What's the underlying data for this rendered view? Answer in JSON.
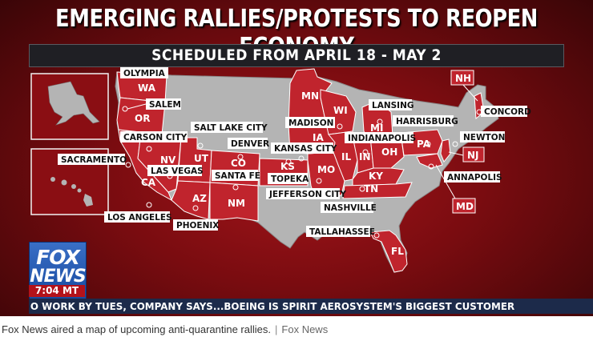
{
  "headline": "EMERGING RALLIES/PROTESTS TO REOPEN ECONOMY",
  "subheadline": "SCHEDULED FROM APRIL 18 - MAY 2",
  "colors": {
    "protest_state": "#c0242d",
    "other_state": "#b4b4b4",
    "background": "#8d1015",
    "label_bg": "#ffffff"
  },
  "states": [
    {
      "abbr": "WA",
      "protest": true
    },
    {
      "abbr": "OR",
      "protest": true
    },
    {
      "abbr": "CA",
      "protest": true
    },
    {
      "abbr": "NV",
      "protest": true
    },
    {
      "abbr": "UT",
      "protest": true
    },
    {
      "abbr": "AZ",
      "protest": true
    },
    {
      "abbr": "CO",
      "protest": true
    },
    {
      "abbr": "NM",
      "protest": true
    },
    {
      "abbr": "KS",
      "protest": true
    },
    {
      "abbr": "MO",
      "protest": true
    },
    {
      "abbr": "IA",
      "protest": true
    },
    {
      "abbr": "MN",
      "protest": true
    },
    {
      "abbr": "WI",
      "protest": true
    },
    {
      "abbr": "MI",
      "protest": true
    },
    {
      "abbr": "IL",
      "protest": true
    },
    {
      "abbr": "IN",
      "protest": true
    },
    {
      "abbr": "OH",
      "protest": true
    },
    {
      "abbr": "KY",
      "protest": true
    },
    {
      "abbr": "TN",
      "protest": true
    },
    {
      "abbr": "PA",
      "protest": true
    },
    {
      "abbr": "FL",
      "protest": true
    },
    {
      "abbr": "NH",
      "protest": true
    },
    {
      "abbr": "NJ",
      "protest": true
    },
    {
      "abbr": "MD",
      "protest": true
    }
  ],
  "cities": [
    {
      "name": "OLYMPIA",
      "state": "WA"
    },
    {
      "name": "SALEM",
      "state": "OR"
    },
    {
      "name": "SACRAMENTO",
      "state": "CA"
    },
    {
      "name": "CARSON CITY",
      "state": "NV"
    },
    {
      "name": "LAS VEGAS",
      "state": "NV"
    },
    {
      "name": "LOS ANGELES",
      "state": "CA"
    },
    {
      "name": "PHOENIX",
      "state": "AZ"
    },
    {
      "name": "SALT LAKE CITY",
      "state": "UT"
    },
    {
      "name": "DENVER",
      "state": "CO"
    },
    {
      "name": "SANTA FE",
      "state": "NM"
    },
    {
      "name": "TOPEKA",
      "state": "KS"
    },
    {
      "name": "KANSAS CITY",
      "state": "MO"
    },
    {
      "name": "JEFFERSON CITY",
      "state": "MO"
    },
    {
      "name": "MADISON",
      "state": "WI"
    },
    {
      "name": "LANSING",
      "state": "MI"
    },
    {
      "name": "INDIANAPOLIS",
      "state": "IN"
    },
    {
      "name": "HARRISBURG",
      "state": "PA"
    },
    {
      "name": "NASHVILLE",
      "state": "TN"
    },
    {
      "name": "TALLAHASSEE",
      "state": "FL"
    },
    {
      "name": "CONCORD",
      "state": "NH"
    },
    {
      "name": "NEWTON",
      "state": "NJ"
    },
    {
      "name": "ANNAPOLIS",
      "state": "MD"
    }
  ],
  "logo": {
    "line1": "FOX",
    "line2": "NEWS"
  },
  "time": "7:04 MT",
  "ticker": "O WORK BY TUES, COMPANY SAYS...BOEING IS SPIRIT AEROSYSTEM'S BIGGEST CUSTOMER",
  "caption": {
    "text": "Fox News aired a map of upcoming anti-quarantine rallies.",
    "separator": "|",
    "credit": "Fox News"
  }
}
